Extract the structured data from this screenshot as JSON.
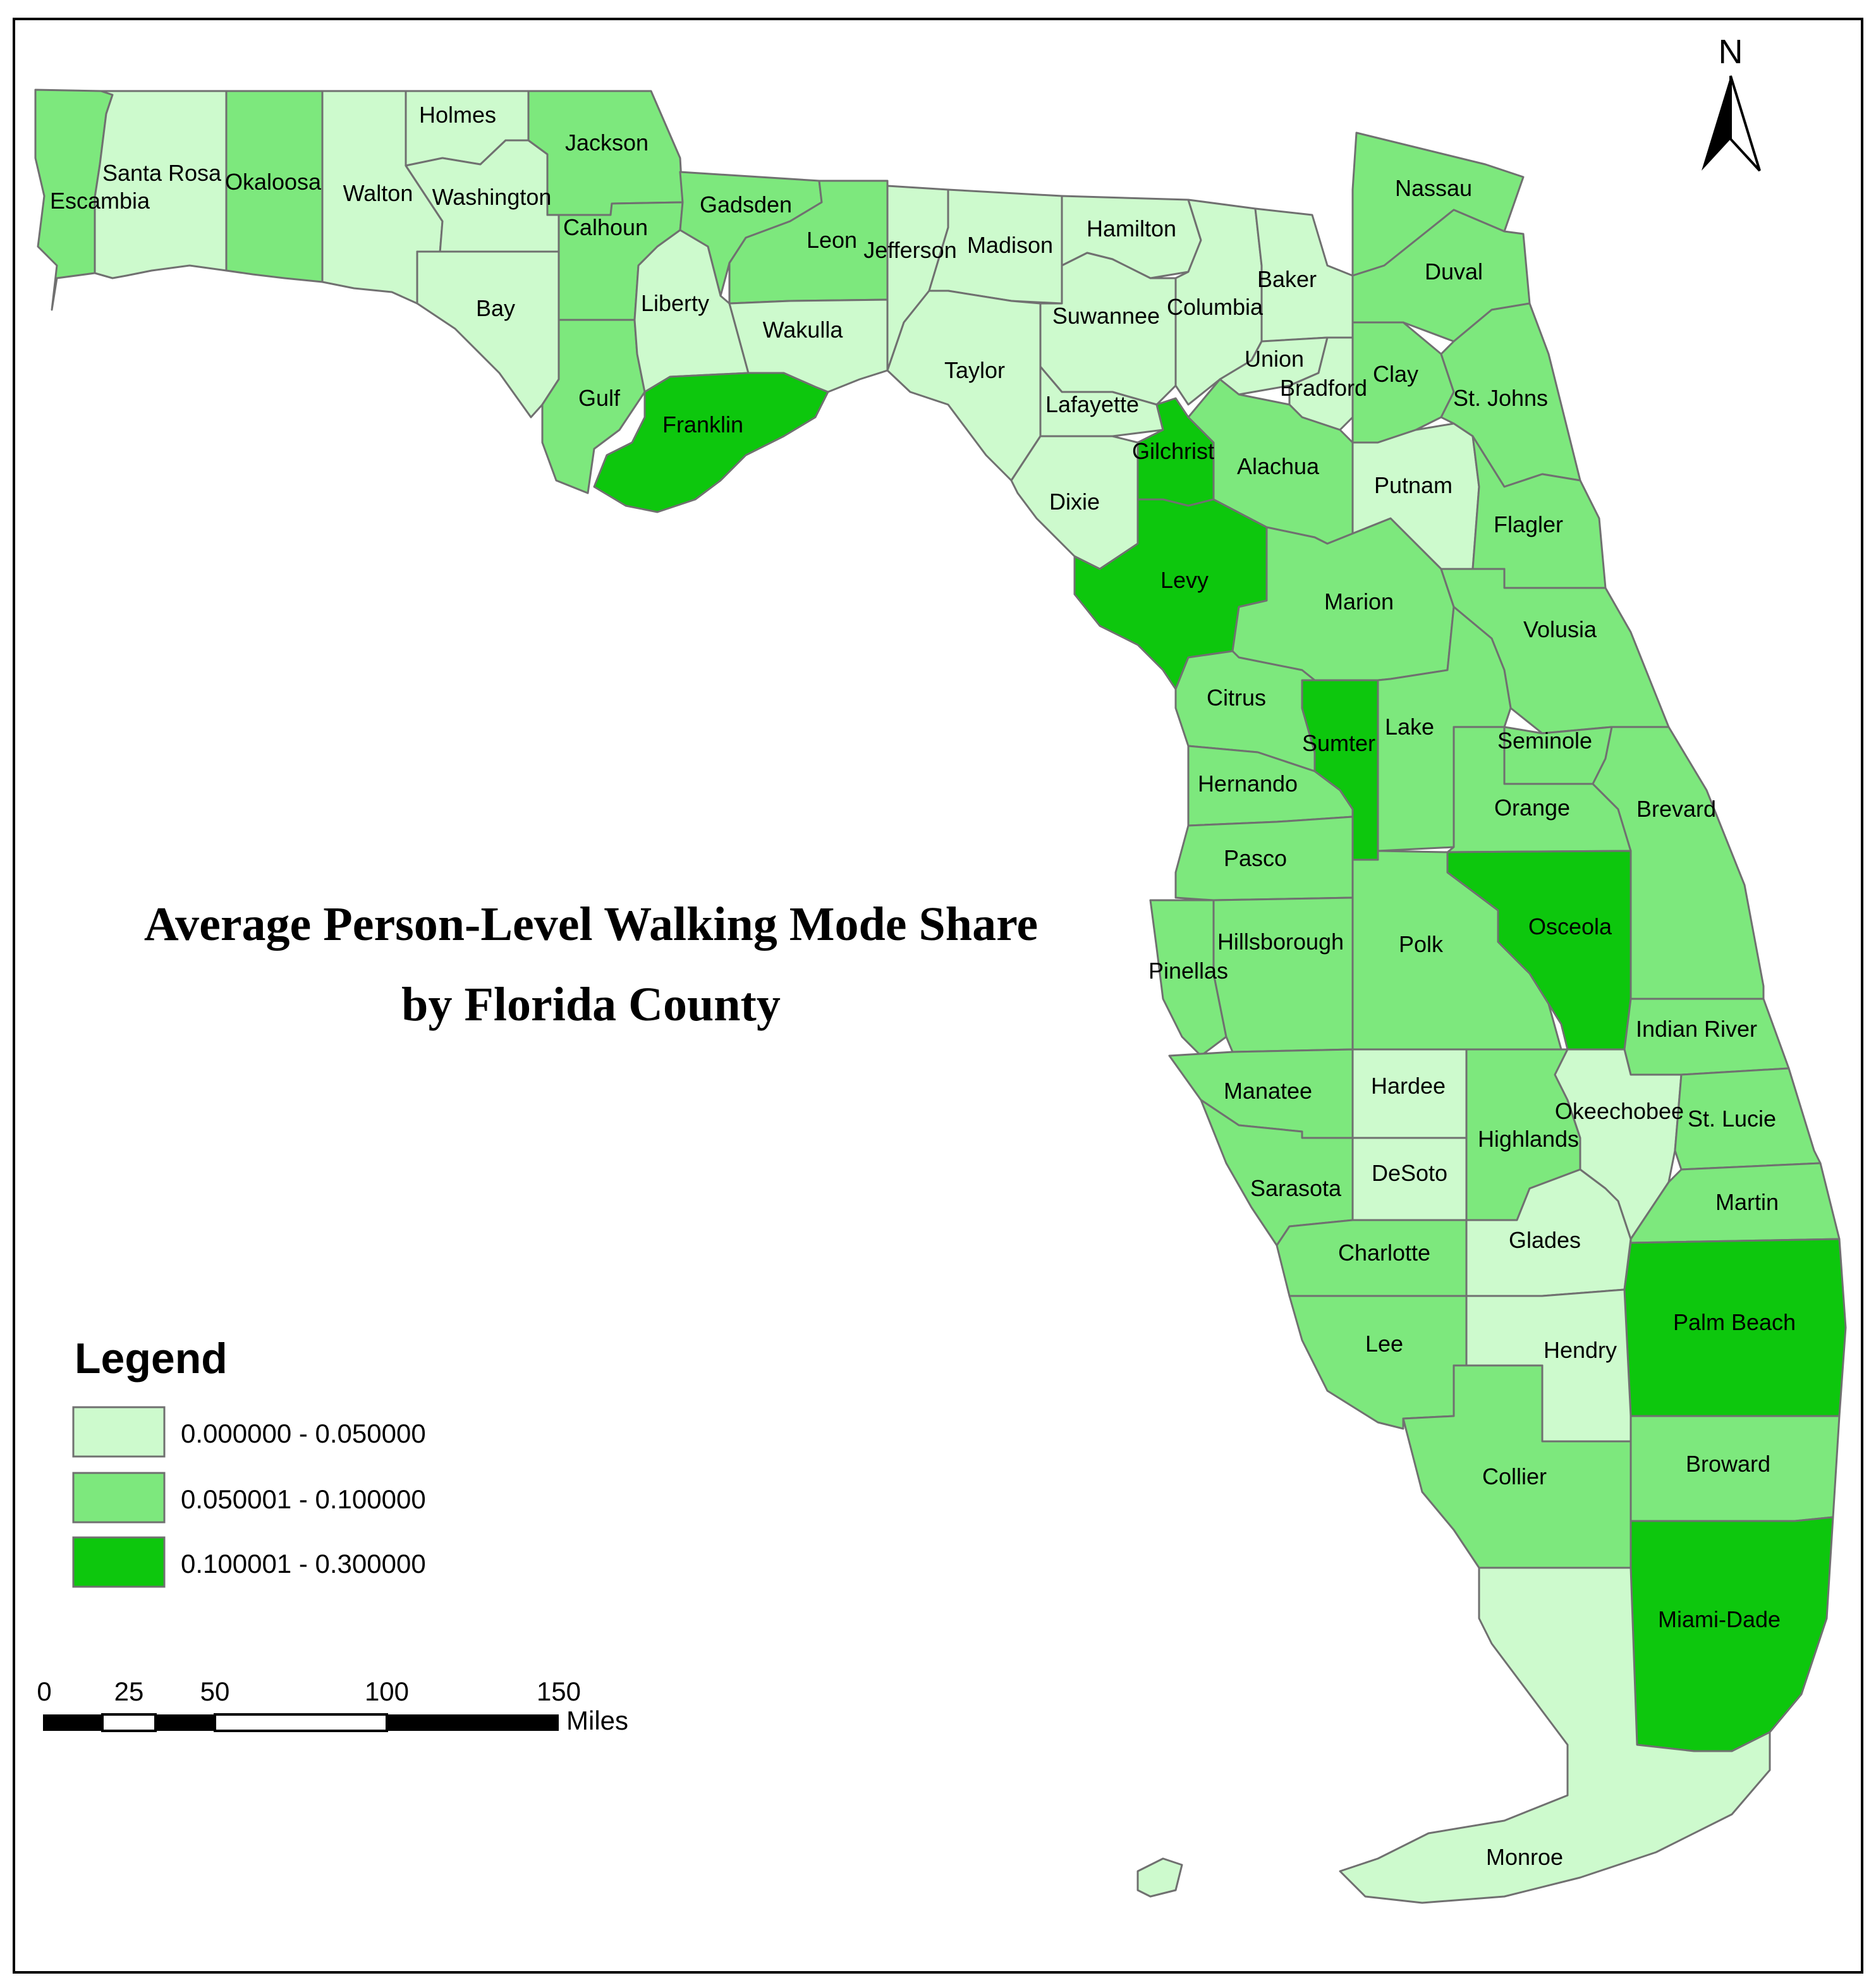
{
  "title": {
    "line1": "Average Person-Level Walking Mode Share",
    "line2": "by Florida County"
  },
  "legend": {
    "title": "Legend",
    "classes": [
      {
        "label": "0.000000 - 0.050000",
        "color": "#cdfacd"
      },
      {
        "label": "0.050001 - 0.100000",
        "color": "#7de87d"
      },
      {
        "label": "0.100001 - 0.300000",
        "color": "#0dc70d"
      }
    ]
  },
  "north_arrow": {
    "label": "N"
  },
  "scale_bar": {
    "ticks": [
      "0",
      "25",
      "50",
      "100",
      "150"
    ],
    "unit": "Miles"
  },
  "counties": [
    {
      "name": "Escambia",
      "class": 2
    },
    {
      "name": "Santa Rosa",
      "class": 1
    },
    {
      "name": "Okaloosa",
      "class": 2
    },
    {
      "name": "Walton",
      "class": 1
    },
    {
      "name": "Holmes",
      "class": 1
    },
    {
      "name": "Washington",
      "class": 1
    },
    {
      "name": "Jackson",
      "class": 2
    },
    {
      "name": "Bay",
      "class": 1
    },
    {
      "name": "Calhoun",
      "class": 2
    },
    {
      "name": "Gulf",
      "class": 2
    },
    {
      "name": "Gadsden",
      "class": 2
    },
    {
      "name": "Liberty",
      "class": 1
    },
    {
      "name": "Franklin",
      "class": 3
    },
    {
      "name": "Leon",
      "class": 2
    },
    {
      "name": "Wakulla",
      "class": 1
    },
    {
      "name": "Jefferson",
      "class": 1
    },
    {
      "name": "Madison",
      "class": 1
    },
    {
      "name": "Taylor",
      "class": 1
    },
    {
      "name": "Hamilton",
      "class": 1
    },
    {
      "name": "Suwannee",
      "class": 1
    },
    {
      "name": "Lafayette",
      "class": 1
    },
    {
      "name": "Dixie",
      "class": 1
    },
    {
      "name": "Columbia",
      "class": 1
    },
    {
      "name": "Baker",
      "class": 1
    },
    {
      "name": "Union",
      "class": 1
    },
    {
      "name": "Bradford",
      "class": 1
    },
    {
      "name": "Gilchrist",
      "class": 3
    },
    {
      "name": "Levy",
      "class": 3
    },
    {
      "name": "Alachua",
      "class": 2
    },
    {
      "name": "Nassau",
      "class": 2
    },
    {
      "name": "Duval",
      "class": 2
    },
    {
      "name": "Clay",
      "class": 2
    },
    {
      "name": "St. Johns",
      "class": 2
    },
    {
      "name": "Putnam",
      "class": 1
    },
    {
      "name": "Flagler",
      "class": 2
    },
    {
      "name": "Marion",
      "class": 2
    },
    {
      "name": "Volusia",
      "class": 2
    },
    {
      "name": "Citrus",
      "class": 2
    },
    {
      "name": "Sumter",
      "class": 3
    },
    {
      "name": "Lake",
      "class": 2
    },
    {
      "name": "Seminole",
      "class": 2
    },
    {
      "name": "Hernando",
      "class": 2
    },
    {
      "name": "Orange",
      "class": 2
    },
    {
      "name": "Brevard",
      "class": 2
    },
    {
      "name": "Pasco",
      "class": 2
    },
    {
      "name": "Pinellas",
      "class": 2
    },
    {
      "name": "Hillsborough",
      "class": 2
    },
    {
      "name": "Polk",
      "class": 2
    },
    {
      "name": "Osceola",
      "class": 3
    },
    {
      "name": "Indian River",
      "class": 2
    },
    {
      "name": "Manatee",
      "class": 2
    },
    {
      "name": "Hardee",
      "class": 1
    },
    {
      "name": "Highlands",
      "class": 2
    },
    {
      "name": "Okeechobee",
      "class": 1
    },
    {
      "name": "St. Lucie",
      "class": 2
    },
    {
      "name": "Sarasota",
      "class": 2
    },
    {
      "name": "DeSoto",
      "class": 1
    },
    {
      "name": "Martin",
      "class": 2
    },
    {
      "name": "Charlotte",
      "class": 2
    },
    {
      "name": "Glades",
      "class": 1
    },
    {
      "name": "Palm Beach",
      "class": 3
    },
    {
      "name": "Lee",
      "class": 2
    },
    {
      "name": "Hendry",
      "class": 1
    },
    {
      "name": "Collier",
      "class": 2
    },
    {
      "name": "Broward",
      "class": 2
    },
    {
      "name": "Miami-Dade",
      "class": 3
    },
    {
      "name": "Monroe",
      "class": 1
    }
  ]
}
